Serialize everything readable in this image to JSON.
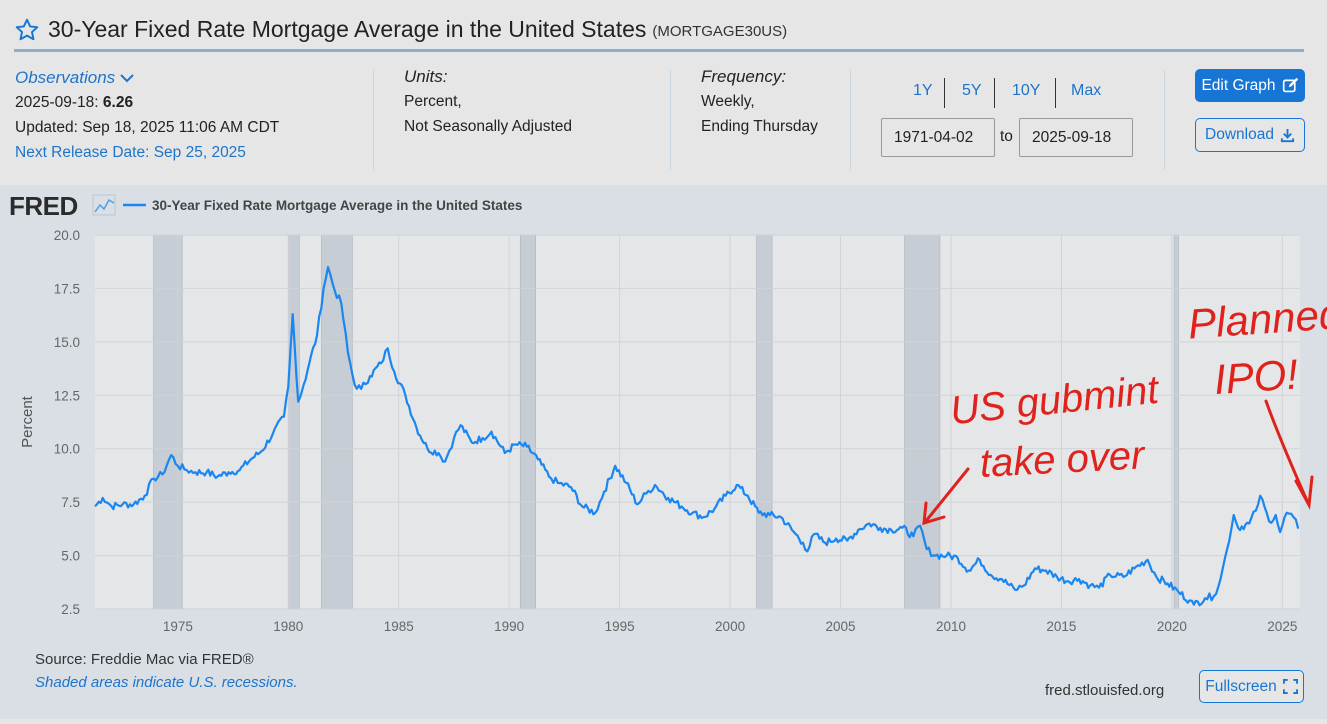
{
  "header": {
    "title": "30-Year Fixed Rate Mortgage Average in the United States",
    "series_id": "(MORTGAGE30US)"
  },
  "observations": {
    "label": "Observations",
    "date": "2025-09-18:",
    "value": "6.26",
    "updated": "Updated: Sep 18, 2025 11:06 AM CDT",
    "next_release": "Next Release Date: Sep 25, 2025"
  },
  "units": {
    "label": "Units:",
    "line1": "Percent,",
    "line2": "Not Seasonally Adjusted"
  },
  "frequency": {
    "label": "Frequency:",
    "line1": "Weekly,",
    "line2": "Ending Thursday"
  },
  "range": {
    "buttons": [
      "1Y",
      "5Y",
      "10Y",
      "Max"
    ],
    "start": "1971-04-02",
    "to_label": "to",
    "end": "2025-09-18"
  },
  "actions": {
    "edit_graph": "Edit Graph",
    "download": "Download",
    "fullscreen": "Fullscreen"
  },
  "chart_logo": "FRED",
  "footer": {
    "source": "Source: Freddie Mac via FRED®",
    "shaded_note": "Shaded areas indicate U.S. recessions.",
    "site": "fred.stlouisfed.org"
  },
  "annotations": {
    "text1_line1": "US gubmint",
    "text1_line2": "take over",
    "text2_line1": "Planned",
    "text2_line2": "IPO!"
  },
  "colors": {
    "series": "#1a86f0",
    "accent": "#1776d5",
    "recession": "#c7cdd5",
    "annotation": "#e0221c"
  },
  "chart_data": {
    "type": "line",
    "legend": "30-Year Fixed Rate Mortgage Average in the United States",
    "ylabel": "Percent",
    "xlim": [
      1971.25,
      2025.8
    ],
    "ylim": [
      2.5,
      20.0
    ],
    "yticks": [
      "2.5",
      "5.0",
      "7.5",
      "10.0",
      "12.5",
      "15.0",
      "17.5",
      "20.0"
    ],
    "xticks": [
      "1975",
      "1980",
      "1985",
      "1990",
      "1995",
      "2000",
      "2005",
      "2010",
      "2015",
      "2020",
      "2025"
    ],
    "recessions": [
      [
        1973.9,
        1975.2
      ],
      [
        1980.0,
        1980.5
      ],
      [
        1981.5,
        1982.9
      ],
      [
        1990.5,
        1991.2
      ],
      [
        2001.2,
        2001.9
      ],
      [
        2007.9,
        2009.5
      ],
      [
        2020.1,
        2020.3
      ]
    ],
    "x": [
      1971.25,
      1971.6,
      1972.0,
      1972.5,
      1973.0,
      1973.5,
      1973.9,
      1974.3,
      1974.7,
      1975.0,
      1975.4,
      1975.8,
      1976.3,
      1976.8,
      1977.3,
      1977.8,
      1978.3,
      1978.8,
      1979.3,
      1979.8,
      1980.0,
      1980.2,
      1980.45,
      1980.7,
      1980.95,
      1981.3,
      1981.6,
      1981.8,
      1982.1,
      1982.4,
      1982.7,
      1983.0,
      1983.3,
      1983.7,
      1984.2,
      1984.5,
      1984.8,
      1985.3,
      1985.8,
      1986.3,
      1986.8,
      1987.1,
      1987.5,
      1987.8,
      1988.3,
      1988.8,
      1989.2,
      1989.8,
      1990.3,
      1990.8,
      1991.3,
      1991.8,
      1992.2,
      1992.8,
      1993.3,
      1993.9,
      1994.3,
      1994.8,
      1995.3,
      1995.8,
      1996.2,
      1996.6,
      1997.2,
      1997.8,
      1998.3,
      1998.8,
      1999.3,
      1999.8,
      2000.3,
      2000.8,
      2001.3,
      2001.8,
      2002.3,
      2002.8,
      2003.3,
      2003.5,
      2003.8,
      2004.3,
      2004.8,
      2005.3,
      2005.8,
      2006.3,
      2006.8,
      2007.3,
      2007.8,
      2008.3,
      2008.6,
      2008.9,
      2009.3,
      2009.8,
      2010.3,
      2010.8,
      2011.3,
      2011.8,
      2012.3,
      2012.9,
      2013.3,
      2013.8,
      2014.3,
      2014.8,
      2015.3,
      2015.8,
      2016.3,
      2016.7,
      2017.2,
      2017.8,
      2018.3,
      2018.9,
      2019.3,
      2019.8,
      2020.3,
      2020.8,
      2021.0,
      2021.5,
      2021.9,
      2022.2,
      2022.5,
      2022.8,
      2023.0,
      2023.5,
      2023.8,
      2024.0,
      2024.4,
      2024.7,
      2024.9,
      2025.2,
      2025.5,
      2025.72
    ],
    "y": [
      7.3,
      7.7,
      7.3,
      7.4,
      7.4,
      7.8,
      8.6,
      8.8,
      9.7,
      9.2,
      9.0,
      8.9,
      8.9,
      8.7,
      8.9,
      9.0,
      9.5,
      9.9,
      10.7,
      11.5,
      12.9,
      16.3,
      12.2,
      13.0,
      14.0,
      15.3,
      17.5,
      18.5,
      17.4,
      16.8,
      14.5,
      13.0,
      12.8,
      13.4,
      14.0,
      14.7,
      13.6,
      12.5,
      11.0,
      10.0,
      9.8,
      9.4,
      10.5,
      11.1,
      10.3,
      10.5,
      10.8,
      9.8,
      10.2,
      10.1,
      9.5,
      8.7,
      8.4,
      8.2,
      7.3,
      7.0,
      8.0,
      9.2,
      8.4,
      7.4,
      7.9,
      8.3,
      7.7,
      7.3,
      7.0,
      6.8,
      7.2,
      7.8,
      8.3,
      7.8,
      7.0,
      6.9,
      6.8,
      6.2,
      5.6,
      5.2,
      6.0,
      5.6,
      5.8,
      5.7,
      6.2,
      6.5,
      6.3,
      6.2,
      6.3,
      5.9,
      6.4,
      5.3,
      5.0,
      5.0,
      4.9,
      4.3,
      4.8,
      4.1,
      3.9,
      3.4,
      3.6,
      4.4,
      4.3,
      4.0,
      3.8,
      3.9,
      3.6,
      3.5,
      4.1,
      4.0,
      4.4,
      4.8,
      4.0,
      3.7,
      3.3,
      2.9,
      2.7,
      3.0,
      3.1,
      3.9,
      5.3,
      6.9,
      6.3,
      6.5,
      7.1,
      7.8,
      6.6,
      6.9,
      6.1,
      7.0,
      6.8,
      6.26
    ]
  }
}
